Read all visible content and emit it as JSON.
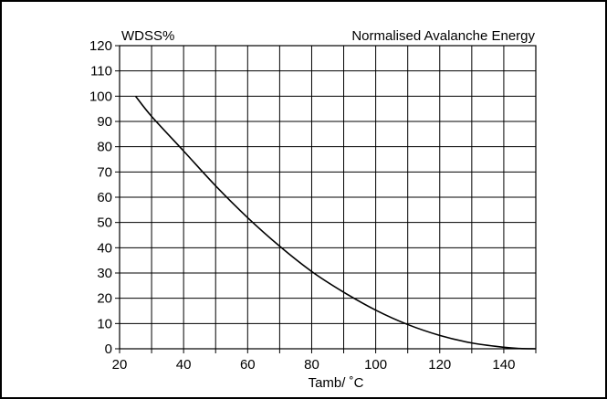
{
  "chart_data": {
    "type": "line",
    "title": "Normalised Avalanche Energy",
    "ylabel": "WDSS%",
    "xlabel": "Tamb/ ˚C",
    "xlim": [
      20,
      150
    ],
    "ylim": [
      0,
      120
    ],
    "x_ticks": [
      20,
      40,
      60,
      80,
      100,
      120,
      140
    ],
    "x_tick_labels": [
      "20",
      "40",
      "60",
      "80",
      "100",
      "120",
      "140"
    ],
    "x_minor_step": 10,
    "y_ticks": [
      0,
      10,
      20,
      30,
      40,
      50,
      60,
      70,
      80,
      90,
      100,
      110,
      120
    ],
    "y_tick_labels": [
      "0",
      "10",
      "20",
      "30",
      "40",
      "50",
      "60",
      "70",
      "80",
      "90",
      "100",
      "110",
      "120"
    ],
    "grid": true,
    "series": [
      {
        "x": [
          25,
          30,
          40,
          50,
          60,
          70,
          80,
          90,
          100,
          110,
          120,
          130,
          140,
          145,
          150
        ],
        "y": [
          100,
          92,
          78.3,
          64.5,
          51.9,
          40.6,
          30.6,
          22.4,
          15.3,
          9.6,
          5.3,
          2.3,
          0.6,
          0.1,
          0
        ]
      }
    ],
    "colors": {
      "line": "#000000",
      "grid": "#000000",
      "background": "#ffffff"
    }
  }
}
